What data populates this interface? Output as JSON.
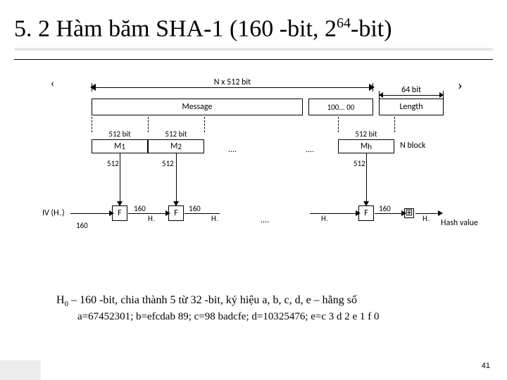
{
  "title": {
    "prefix": "5. 2 Hàm băm SHA-1 (160 -bit, 2",
    "sup": "64",
    "suffix": "-bit)"
  },
  "leftGlyph": "‹",
  "rightGlyph": "›",
  "diagram": {
    "dimN": "N x 512 bit",
    "dim64": "64 bit",
    "message": "Message",
    "pad": "100... 00",
    "length": "Length",
    "w512": "512 bit",
    "nblock": "N block",
    "flow512": "512",
    "F": "F",
    "iv": "IV (H₋)",
    "l160": "160",
    "H0": "H₋",
    "H1": "H₋",
    "Hh1": "H₋",
    "Hh": "H₋",
    "hashv": "Hash value",
    "M1": "M",
    "M1sub": "1",
    "M2": "M",
    "M2sub": "2",
    "Mh": "M",
    "Mhsub": "h",
    "dots": "....",
    "plus": "⊞"
  },
  "caption": {
    "line1a": "H",
    "line1sub": "0",
    "line1b": " – 160 -bit, chia thành 5 từ 32 -bit, ký hiệu a, b, c, d, e – hằng số",
    "line2": "a=67452301; b=efcdab 89; c=98 badcfe; d=10325476; e=c 3 d 2 e 1 f 0"
  },
  "pageNumber": "41"
}
